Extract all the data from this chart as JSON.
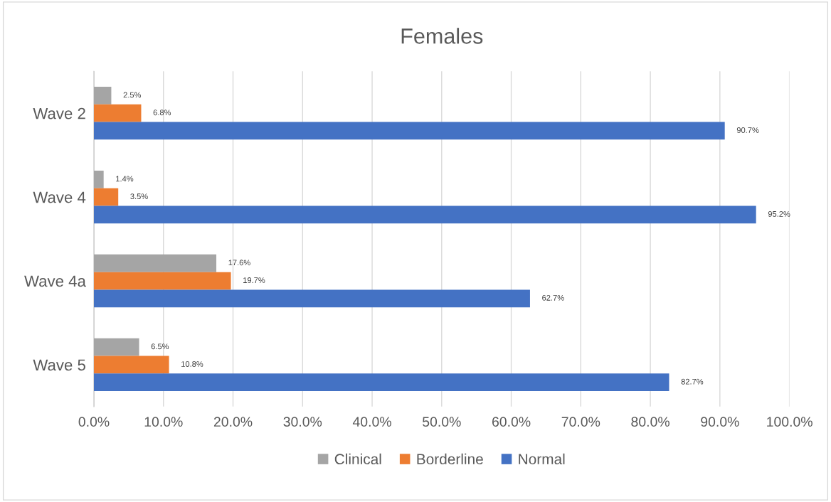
{
  "chart_data": {
    "type": "bar",
    "orientation": "horizontal",
    "title": "Females",
    "categories": [
      "Wave 2",
      "Wave 4",
      "Wave 4a",
      "Wave 5"
    ],
    "series": [
      {
        "name": "Clinical",
        "color": "#a5a5a5",
        "values": [
          2.5,
          1.4,
          17.6,
          6.5
        ],
        "value_labels": [
          "2.5%",
          "1.4%",
          "17.6%",
          "6.5%"
        ]
      },
      {
        "name": "Borderline",
        "color": "#ed7d31",
        "values": [
          6.8,
          3.5,
          19.7,
          10.8
        ],
        "value_labels": [
          "6.8%",
          "3.5%",
          "19.7%",
          "10.8%"
        ]
      },
      {
        "name": "Normal",
        "color": "#4472c4",
        "values": [
          90.7,
          95.2,
          62.7,
          82.7
        ],
        "value_labels": [
          "90.7%",
          "95.2%",
          "62.7%",
          "82.7%"
        ]
      }
    ],
    "xlim": [
      0,
      100
    ],
    "xticks": [
      {
        "value": 0,
        "label": "0.0%"
      },
      {
        "value": 10,
        "label": "10.0%"
      },
      {
        "value": 20,
        "label": "20.0%"
      },
      {
        "value": 30,
        "label": "30.0%"
      },
      {
        "value": 40,
        "label": "40.0%"
      },
      {
        "value": 50,
        "label": "50.0%"
      },
      {
        "value": 60,
        "label": "60.0%"
      },
      {
        "value": 70,
        "label": "70.0%"
      },
      {
        "value": 80,
        "label": "80.0%"
      },
      {
        "value": 90,
        "label": "90.0%"
      },
      {
        "value": 100,
        "label": "100.0%"
      }
    ],
    "grid": "x",
    "legend": "bottom"
  }
}
